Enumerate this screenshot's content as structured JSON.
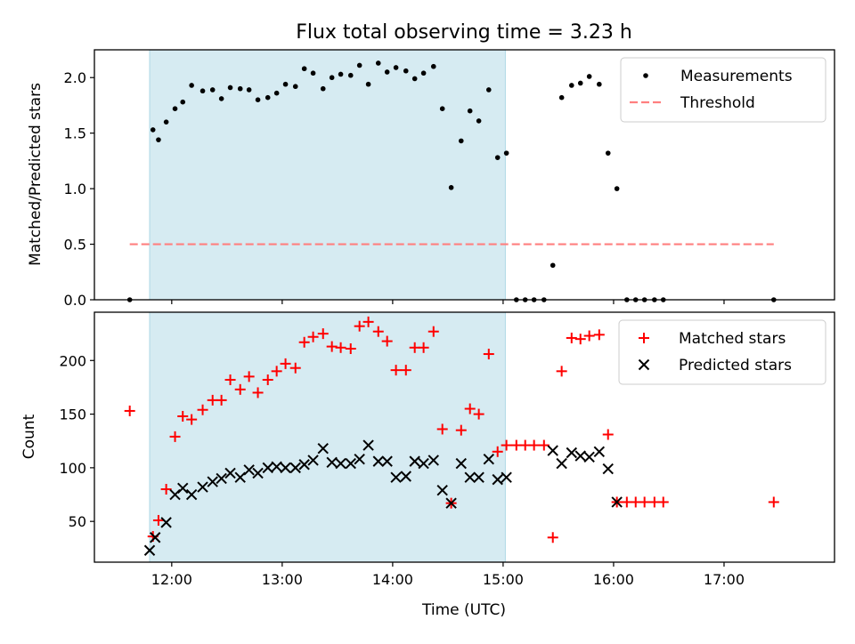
{
  "chart_data": [
    {
      "type": "scatter",
      "title": "Flux total observing time = 3.23 h",
      "xlabel": "",
      "ylabel": "Matched/Predicted stars",
      "x_unit": "hours UTC",
      "xlim": [
        11.3,
        18.0
      ],
      "ylim": [
        0,
        2.25
      ],
      "yticks": [
        "0.0",
        "0.5",
        "1.0",
        "1.5",
        "2.0"
      ],
      "ytick_values": [
        0,
        0.5,
        1.0,
        1.5,
        2.0
      ],
      "xticks_values": [
        12,
        13,
        14,
        15,
        16,
        17
      ],
      "shaded_region": {
        "x": [
          11.8,
          15.02
        ],
        "color": "#add8e6"
      },
      "legend_position": "top-right",
      "colors": {
        "measurements": "#000000",
        "threshold": "#ff7f7f",
        "shade": "#add8e6"
      },
      "threshold": {
        "name": "Threshold",
        "y": 0.5,
        "x": [
          11.62,
          17.45
        ]
      },
      "series": [
        {
          "name": "Measurements",
          "x": [
            11.62,
            11.83,
            11.88,
            11.95,
            12.03,
            12.1,
            12.18,
            12.28,
            12.37,
            12.45,
            12.53,
            12.62,
            12.7,
            12.78,
            12.87,
            12.95,
            13.03,
            13.12,
            13.2,
            13.28,
            13.37,
            13.45,
            13.53,
            13.62,
            13.7,
            13.78,
            13.87,
            13.95,
            14.03,
            14.12,
            14.2,
            14.28,
            14.37,
            14.45,
            14.53,
            14.62,
            14.7,
            14.78,
            14.87,
            14.95,
            15.03,
            15.12,
            15.2,
            15.28,
            15.37,
            15.45,
            15.53,
            15.62,
            15.7,
            15.78,
            15.87,
            15.95,
            16.03,
            16.12,
            16.2,
            16.28,
            16.37,
            16.45,
            17.45
          ],
          "y": [
            0,
            1.53,
            1.44,
            1.6,
            1.72,
            1.78,
            1.93,
            1.88,
            1.89,
            1.81,
            1.91,
            1.9,
            1.89,
            1.8,
            1.82,
            1.86,
            1.94,
            1.92,
            2.08,
            2.04,
            1.9,
            2.0,
            2.03,
            2.02,
            2.11,
            1.94,
            2.13,
            2.05,
            2.09,
            2.06,
            1.99,
            2.04,
            2.1,
            1.72,
            1.01,
            1.43,
            1.7,
            1.61,
            1.89,
            1.28,
            1.32,
            0,
            0,
            0,
            0,
            0.31,
            1.82,
            1.93,
            1.95,
            2.01,
            1.94,
            1.32,
            1.0,
            0,
            0,
            0,
            0,
            0,
            0
          ]
        }
      ]
    },
    {
      "type": "scatter",
      "title": "",
      "xlabel": "Time (UTC)",
      "ylabel": "Count",
      "x_unit": "hours UTC",
      "xlim": [
        11.3,
        18.0
      ],
      "ylim": [
        12,
        245
      ],
      "yticks": [
        "50",
        "100",
        "150",
        "200"
      ],
      "ytick_values": [
        50,
        100,
        150,
        200
      ],
      "xticks": [
        "12:00",
        "13:00",
        "14:00",
        "15:00",
        "16:00",
        "17:00"
      ],
      "xticks_values": [
        12,
        13,
        14,
        15,
        16,
        17
      ],
      "shaded_region": {
        "x": [
          11.8,
          15.02
        ],
        "color": "#add8e6"
      },
      "legend_position": "top-right",
      "colors": {
        "matched": "#ff0000",
        "predicted": "#000000"
      },
      "series": [
        {
          "name": "Matched stars",
          "marker": "plus",
          "x": [
            11.62,
            11.83,
            11.88,
            11.95,
            12.03,
            12.1,
            12.18,
            12.28,
            12.37,
            12.45,
            12.53,
            12.62,
            12.7,
            12.78,
            12.87,
            12.95,
            13.03,
            13.12,
            13.2,
            13.28,
            13.37,
            13.45,
            13.53,
            13.62,
            13.7,
            13.78,
            13.87,
            13.95,
            14.03,
            14.12,
            14.2,
            14.28,
            14.37,
            14.45,
            14.53,
            14.62,
            14.7,
            14.78,
            14.87,
            14.95,
            15.03,
            15.12,
            15.2,
            15.28,
            15.37,
            15.45,
            15.53,
            15.62,
            15.7,
            15.78,
            15.87,
            15.95,
            16.03,
            16.12,
            16.2,
            16.28,
            16.37,
            16.45,
            17.45
          ],
          "y": [
            153,
            36,
            51,
            80,
            129,
            148,
            145,
            154,
            163,
            163,
            182,
            173,
            185,
            170,
            182,
            190,
            197,
            193,
            217,
            222,
            225,
            213,
            212,
            211,
            232,
            236,
            227,
            218,
            191,
            191,
            212,
            212,
            227,
            136,
            67,
            135,
            155,
            150,
            206,
            115,
            121,
            121,
            121,
            121,
            121,
            35,
            190,
            221,
            220,
            223,
            224,
            131,
            68,
            68,
            68,
            68,
            68,
            68,
            68
          ]
        },
        {
          "name": "Predicted stars",
          "marker": "x",
          "x": [
            11.8,
            11.85,
            11.95,
            12.03,
            12.1,
            12.18,
            12.28,
            12.37,
            12.45,
            12.53,
            12.62,
            12.7,
            12.78,
            12.87,
            12.95,
            13.03,
            13.12,
            13.2,
            13.28,
            13.37,
            13.45,
            13.53,
            13.62,
            13.7,
            13.78,
            13.87,
            13.95,
            14.03,
            14.12,
            14.2,
            14.28,
            14.37,
            14.45,
            14.53,
            14.62,
            14.7,
            14.78,
            14.87,
            14.95,
            15.03,
            15.45,
            15.53,
            15.62,
            15.7,
            15.78,
            15.87,
            15.95,
            16.03
          ],
          "y": [
            23,
            35,
            49,
            75,
            81,
            75,
            82,
            87,
            90,
            95,
            91,
            98,
            95,
            100,
            101,
            100,
            100,
            103,
            107,
            118,
            105,
            104,
            104,
            108,
            121,
            106,
            106,
            91,
            92,
            106,
            104,
            107,
            79,
            67,
            104,
            91,
            91,
            108,
            89,
            91,
            116,
            104,
            114,
            111,
            110,
            115,
            99,
            68
          ]
        }
      ]
    }
  ]
}
